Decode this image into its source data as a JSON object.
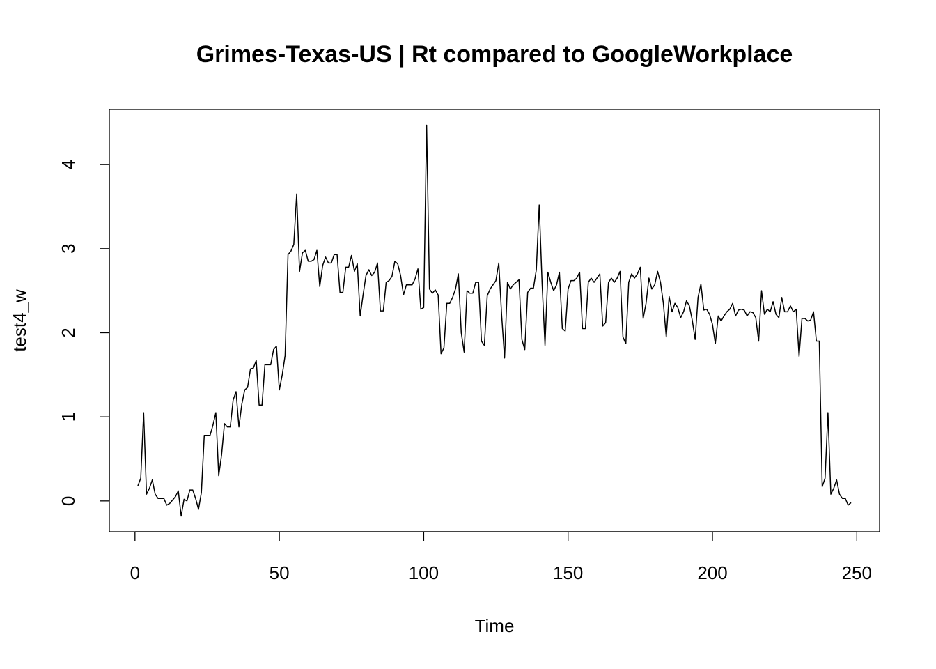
{
  "chart_data": {
    "type": "line",
    "title": "Grimes-Texas-US | Rt compared to GoogleWorkplace",
    "x_label": "Time",
    "y_label": "test4_w",
    "x": [
      1,
      2,
      3,
      4,
      5,
      6,
      7,
      8,
      9,
      10,
      11,
      12,
      13,
      14,
      15,
      16,
      17,
      18,
      19,
      20,
      21,
      22,
      23,
      24,
      25,
      26,
      27,
      28,
      29,
      30,
      31,
      32,
      33,
      34,
      35,
      36,
      37,
      38,
      39,
      40,
      41,
      42,
      43,
      44,
      45,
      46,
      47,
      48,
      49,
      50,
      51,
      52,
      53,
      54,
      55,
      56,
      57,
      58,
      59,
      60,
      61,
      62,
      63,
      64,
      65,
      66,
      67,
      68,
      69,
      70,
      71,
      72,
      73,
      74,
      75,
      76,
      77,
      78,
      79,
      80,
      81,
      82,
      83,
      84,
      85,
      86,
      87,
      88,
      89,
      90,
      91,
      92,
      93,
      94,
      95,
      96,
      97,
      98,
      99,
      100,
      101,
      102,
      103,
      104,
      105,
      106,
      107,
      108,
      109,
      110,
      111,
      112,
      113,
      114,
      115,
      116,
      117,
      118,
      119,
      120,
      121,
      122,
      123,
      124,
      125,
      126,
      127,
      128,
      129,
      130,
      131,
      132,
      133,
      134,
      135,
      136,
      137,
      138,
      139,
      140,
      141,
      142,
      143,
      144,
      145,
      146,
      147,
      148,
      149,
      150,
      151,
      152,
      153,
      154,
      155,
      156,
      157,
      158,
      159,
      160,
      161,
      162,
      163,
      164,
      165,
      166,
      167,
      168,
      169,
      170,
      171,
      172,
      173,
      174,
      175,
      176,
      177,
      178,
      179,
      180,
      181,
      182,
      183,
      184,
      185,
      186,
      187,
      188,
      189,
      190,
      191,
      192,
      193,
      194,
      195,
      196,
      197,
      198,
      199,
      200,
      201,
      202,
      203,
      204,
      205,
      206,
      207,
      208,
      209,
      210,
      211,
      212,
      213,
      214,
      215,
      216,
      217,
      218,
      219,
      220,
      221,
      222,
      223,
      224,
      225,
      226,
      227,
      228,
      229,
      230,
      231,
      232,
      233,
      234,
      235,
      236,
      237,
      238,
      239,
      240,
      241,
      242,
      243,
      244,
      245,
      246,
      247,
      248
    ],
    "series": [
      {
        "name": "test4_w",
        "color": "#000000",
        "values": [
          0.18,
          0.27,
          1.05,
          0.08,
          0.15,
          0.25,
          0.08,
          0.03,
          0.03,
          0.03,
          -0.05,
          -0.03,
          0.01,
          0.05,
          0.12,
          -0.18,
          0.02,
          0.0,
          0.13,
          0.13,
          0.03,
          -0.1,
          0.1,
          0.78,
          0.78,
          0.78,
          0.9,
          1.05,
          0.3,
          0.55,
          0.92,
          0.88,
          0.88,
          1.2,
          1.3,
          0.88,
          1.15,
          1.32,
          1.35,
          1.57,
          1.58,
          1.67,
          1.14,
          1.14,
          1.62,
          1.62,
          1.62,
          1.8,
          1.84,
          1.32,
          1.5,
          1.73,
          2.93,
          2.97,
          3.05,
          3.65,
          2.73,
          2.95,
          2.98,
          2.85,
          2.85,
          2.87,
          2.98,
          2.55,
          2.8,
          2.9,
          2.83,
          2.83,
          2.93,
          2.93,
          2.48,
          2.48,
          2.78,
          2.78,
          2.92,
          2.73,
          2.82,
          2.2,
          2.45,
          2.68,
          2.75,
          2.68,
          2.72,
          2.83,
          2.26,
          2.26,
          2.6,
          2.62,
          2.67,
          2.85,
          2.82,
          2.68,
          2.45,
          2.57,
          2.57,
          2.57,
          2.64,
          2.76,
          2.28,
          2.3,
          4.47,
          2.52,
          2.47,
          2.51,
          2.45,
          1.75,
          1.82,
          2.35,
          2.35,
          2.42,
          2.52,
          2.7,
          2.0,
          1.77,
          2.5,
          2.47,
          2.47,
          2.6,
          2.6,
          1.9,
          1.85,
          2.44,
          2.52,
          2.57,
          2.62,
          2.83,
          2.2,
          1.7,
          2.6,
          2.52,
          2.57,
          2.6,
          2.63,
          1.92,
          1.8,
          2.48,
          2.53,
          2.53,
          2.75,
          3.52,
          2.58,
          1.85,
          2.72,
          2.6,
          2.5,
          2.57,
          2.72,
          2.05,
          2.02,
          2.52,
          2.62,
          2.62,
          2.65,
          2.72,
          2.05,
          2.05,
          2.6,
          2.65,
          2.6,
          2.65,
          2.7,
          2.08,
          2.12,
          2.6,
          2.65,
          2.6,
          2.65,
          2.73,
          1.95,
          1.87,
          2.6,
          2.7,
          2.65,
          2.7,
          2.78,
          2.17,
          2.35,
          2.65,
          2.52,
          2.57,
          2.73,
          2.6,
          2.35,
          1.95,
          2.43,
          2.25,
          2.35,
          2.3,
          2.18,
          2.25,
          2.38,
          2.32,
          2.15,
          1.92,
          2.42,
          2.58,
          2.27,
          2.28,
          2.22,
          2.1,
          1.87,
          2.2,
          2.14,
          2.2,
          2.25,
          2.28,
          2.35,
          2.2,
          2.27,
          2.28,
          2.27,
          2.2,
          2.25,
          2.24,
          2.18,
          1.9,
          2.5,
          2.22,
          2.28,
          2.25,
          2.37,
          2.22,
          2.18,
          2.42,
          2.25,
          2.25,
          2.32,
          2.25,
          2.28,
          1.72,
          2.17,
          2.17,
          2.14,
          2.15,
          2.25,
          1.9,
          1.9,
          0.17,
          0.27,
          1.05,
          0.08,
          0.15,
          0.25,
          0.08,
          0.03,
          0.03,
          -0.05,
          -0.02
        ]
      }
    ],
    "xlim": [
      -8.88,
      257.88
    ],
    "xticks": [
      0,
      50,
      100,
      150,
      200,
      250
    ],
    "ylim": [
      -0.366,
      4.656
    ],
    "yticks": [
      0,
      1,
      2,
      3,
      4
    ]
  }
}
